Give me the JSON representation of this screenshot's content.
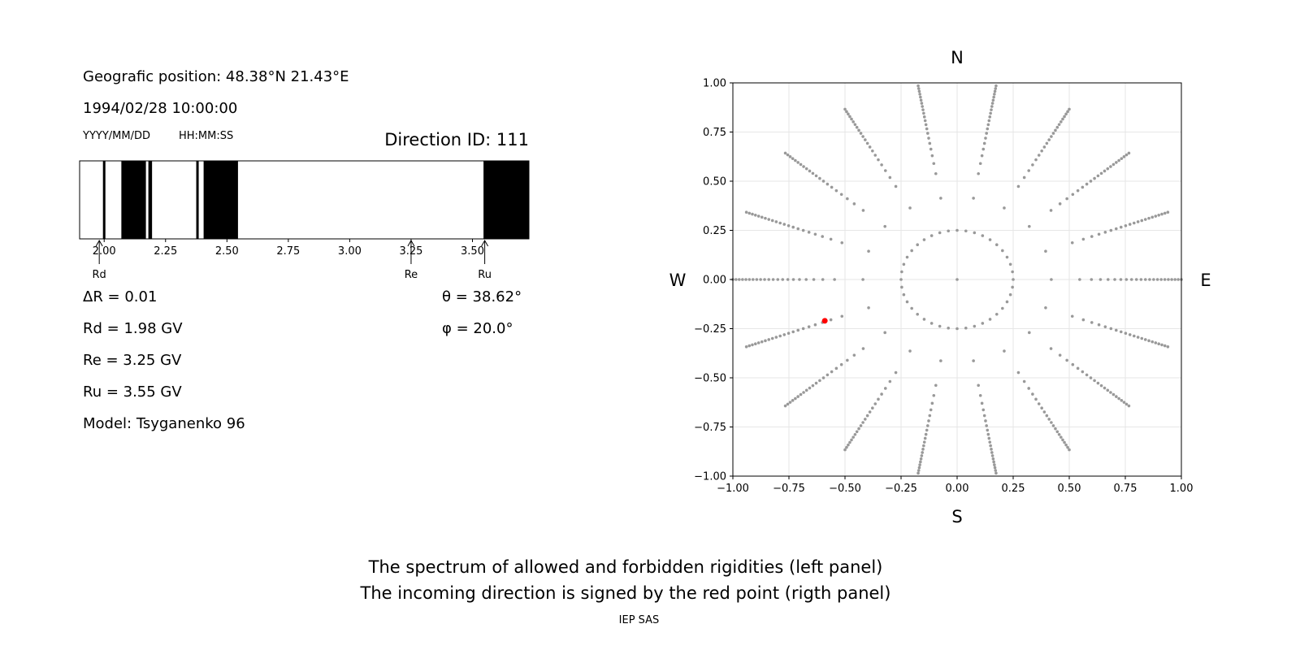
{
  "info": {
    "geo_position": "Geografic position: 48.38°N 21.43°E",
    "datetime": "1994/02/28 10:00:00",
    "date_format": "YYYY/MM/DD",
    "time_format": "HH:MM:SS",
    "direction_id": "Direction ID: 111",
    "delta_r": "ΔR = 0.01",
    "rd": "Rd = 1.98 GV",
    "re": "Re = 3.25 GV",
    "ru": "Ru = 3.55 GV",
    "model": "Model: Tsyganenko 96",
    "theta": "θ = 38.62°",
    "phi": "φ = 20.0°"
  },
  "captions": {
    "line1": "The spectrum of allowed and forbidden rigidities (left panel)",
    "line2": "The incoming direction is signed by the red point (rigth panel)",
    "credit": "IEP SAS"
  },
  "chart_data": [
    {
      "type": "bar",
      "title": "",
      "xlabel": "",
      "ylabel": "",
      "xlim": [
        1.9,
        3.73
      ],
      "x_ticks": [
        "2.00",
        "2.25",
        "2.50",
        "2.75",
        "3.00",
        "3.25",
        "3.50"
      ],
      "x_tick_values": [
        2.0,
        2.25,
        2.5,
        2.75,
        3.0,
        3.25,
        3.5
      ],
      "forbidden_bands": [
        [
          1.995,
          2.005
        ],
        [
          2.07,
          2.17
        ],
        [
          2.18,
          2.195
        ],
        [
          2.375,
          2.385
        ],
        [
          2.405,
          2.545
        ],
        [
          3.545,
          3.73
        ]
      ],
      "markers": [
        {
          "label": "Rd",
          "value": 1.98
        },
        {
          "label": "Re",
          "value": 3.25
        },
        {
          "label": "Ru",
          "value": 3.55
        }
      ],
      "colors": {
        "forbidden": "#000000",
        "allowed": "#ffffff"
      }
    },
    {
      "type": "scatter",
      "title": "",
      "xlabel": "",
      "ylabel": "",
      "xlim": [
        -1.0,
        1.0
      ],
      "ylim": [
        -1.0,
        1.0
      ],
      "grid": true,
      "x_ticks": [
        "−1.00",
        "−0.75",
        "−0.50",
        "−0.25",
        "0.00",
        "0.25",
        "0.50",
        "0.75",
        "1.00"
      ],
      "y_ticks": [
        "−1.00",
        "−0.75",
        "−0.50",
        "−0.25",
        "0.00",
        "0.25",
        "0.50",
        "0.75",
        "1.00"
      ],
      "tick_values": [
        -1.0,
        -0.75,
        -0.5,
        -0.25,
        0.0,
        0.25,
        0.5,
        0.75,
        1.0
      ],
      "compass": {
        "north": "N",
        "south": "S",
        "west": "W",
        "east": "E"
      },
      "grid_pattern": {
        "center": [
          0,
          0
        ],
        "ring_radius": 0.25,
        "ring_points": 40,
        "ray_angle_step_deg": 20,
        "ray_radius_range": [
          0.42,
          1.0
        ]
      },
      "highlight_point": {
        "x": -0.59,
        "y": -0.21,
        "color": "#ff0000"
      },
      "colors": {
        "points": "#999999"
      }
    }
  ]
}
